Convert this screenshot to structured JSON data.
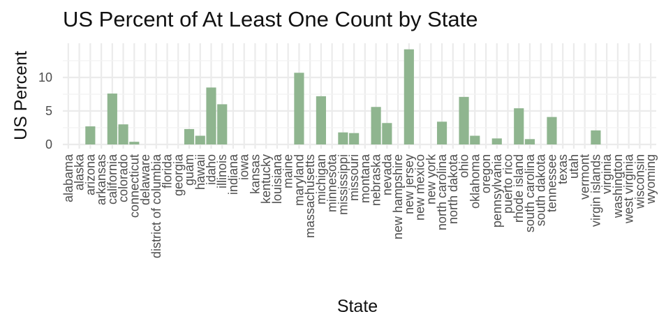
{
  "chart_data": {
    "type": "bar",
    "title": "US Percent of At Least One Count by State",
    "xlabel": "State",
    "ylabel": "US Percent",
    "ylim": [
      0,
      14.2
    ],
    "yticks": [
      0,
      5,
      10
    ],
    "grid": true,
    "legend": "none",
    "bar_color": "#8fb58f",
    "grid_color": "#ebebeb",
    "categories": [
      "alabama",
      "alaska",
      "arizona",
      "arkansas",
      "california",
      "colorado",
      "connecticut",
      "delaware",
      "district of columbia",
      "florida",
      "georgia",
      "guam",
      "hawaii",
      "idaho",
      "illinois",
      "indiana",
      "iowa",
      "kansas",
      "kentucky",
      "louisiana",
      "maine",
      "maryland",
      "massachusetts",
      "michigan",
      "minnesota",
      "mississippi",
      "missouri",
      "montana",
      "nebraska",
      "nevada",
      "new hampshire",
      "new jersey",
      "new mexico",
      "new york",
      "north carolina",
      "north dakota",
      "ohio",
      "oklahoma",
      "oregon",
      "pennsylvania",
      "puerto rico",
      "rhode island",
      "south carolina",
      "south dakota",
      "tennessee",
      "texas",
      "utah",
      "vermont",
      "virgin islands",
      "virginia",
      "washington",
      "west virginia",
      "wisconsin",
      "wyoming"
    ],
    "values": [
      0,
      0,
      2.7,
      0,
      7.6,
      3.0,
      0.4,
      0,
      0,
      0,
      0,
      2.3,
      1.3,
      8.5,
      6.0,
      0,
      0,
      0,
      0,
      0,
      0,
      10.7,
      0,
      7.2,
      0,
      1.8,
      1.7,
      0,
      5.6,
      3.2,
      0,
      14.2,
      0,
      0,
      3.4,
      0,
      7.1,
      1.3,
      0,
      0.9,
      0,
      5.4,
      0.8,
      0,
      4.1,
      0,
      0,
      0,
      2.1,
      0,
      0,
      0,
      0,
      0
    ]
  }
}
